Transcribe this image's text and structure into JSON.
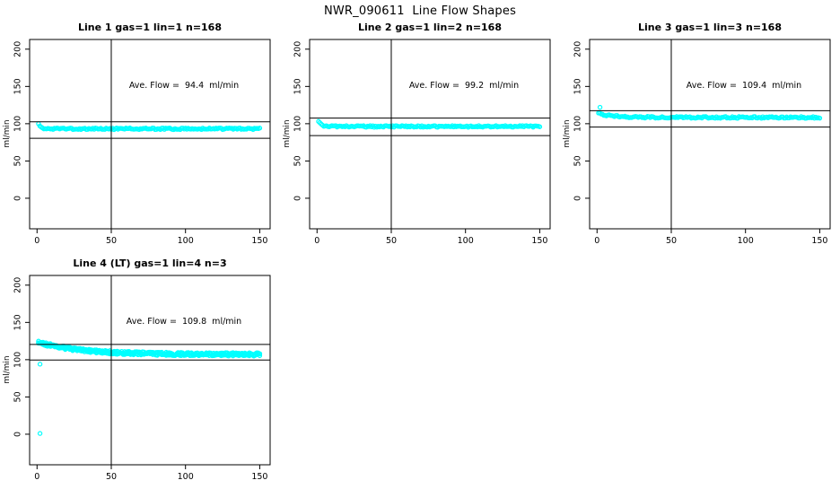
{
  "chart_data": {
    "type": "scatter",
    "title": "NWR_090611  Line Flow Shapes",
    "marker": {
      "shape": "open-circle",
      "color": "#00FFFF",
      "radius": 2.1
    },
    "layout": {
      "rows": 2,
      "cols": 3,
      "grid": false,
      "background": "#ffffff",
      "box_color": "#000000"
    },
    "panels": [
      {
        "id": "line-1",
        "title": "Line 1 gas=1 lin=1 n=168",
        "annotation": "Ave. Flow =  94.4  ml/min",
        "ave_flow": 94.4,
        "n": 168,
        "ylabel": "ml/min",
        "x_ticks": [
          0,
          50,
          100,
          150
        ],
        "y_ticks": [
          0,
          50,
          100,
          150,
          200
        ],
        "xlim": [
          -5,
          157
        ],
        "ylim": [
          -41,
          213
        ],
        "vline_x": 50,
        "ref_lines": [
          102.5,
          80.5
        ],
        "series": {
          "n": 168,
          "x_start": 1,
          "x_end": 150,
          "y_start": 101,
          "y_settle": 93.2,
          "decay_tau": 1.6,
          "noise": 1.1,
          "runs": 1,
          "seed": 11
        },
        "outliers": []
      },
      {
        "id": "line-2",
        "title": "Line 2 gas=1 lin=2 n=168",
        "annotation": "Ave. Flow =  99.2  ml/min",
        "ave_flow": 99.2,
        "n": 168,
        "ylabel": "ml/min",
        "x_ticks": [
          0,
          50,
          100,
          150
        ],
        "y_ticks": [
          0,
          50,
          100,
          150,
          200
        ],
        "xlim": [
          -5,
          157
        ],
        "ylim": [
          -41,
          213
        ],
        "vline_x": 50,
        "ref_lines": [
          107.5,
          84
        ],
        "series": {
          "n": 168,
          "x_start": 1,
          "x_end": 150,
          "y_start": 103.5,
          "y_settle": 96.3,
          "decay_tau": 2.0,
          "noise": 1.1,
          "runs": 1,
          "seed": 22
        },
        "outliers": []
      },
      {
        "id": "line-3",
        "title": "Line 3 gas=1 lin=3 n=168",
        "annotation": "Ave. Flow =  109.4  ml/min",
        "ave_flow": 109.4,
        "n": 168,
        "ylabel": "ml/min",
        "x_ticks": [
          0,
          50,
          100,
          150
        ],
        "y_ticks": [
          0,
          50,
          100,
          150,
          200
        ],
        "xlim": [
          -5,
          157
        ],
        "ylim": [
          -41,
          213
        ],
        "vline_x": 50,
        "ref_lines": [
          117.5,
          95.5
        ],
        "series": {
          "n": 168,
          "x_start": 1,
          "x_end": 150,
          "y_start": 114,
          "y_settle": 108.4,
          "decay_tau": 10,
          "noise": 1.2,
          "runs": 1,
          "seed": 33
        },
        "outliers": [
          [
            2,
            122
          ]
        ]
      },
      {
        "id": "line-4",
        "title": "Line 4 (LT) gas=1 lin=4 n=3",
        "annotation": "Ave. Flow =  109.8  ml/min",
        "ave_flow": 109.8,
        "n": 3,
        "ylabel": "ml/min",
        "x_ticks": [
          0,
          50,
          100,
          150
        ],
        "y_ticks": [
          0,
          50,
          100,
          150,
          200
        ],
        "xlim": [
          -5,
          157
        ],
        "ylim": [
          -41,
          213
        ],
        "vline_x": 50,
        "ref_lines": [
          120.5,
          99.5
        ],
        "series": {
          "n": 150,
          "x_start": 1,
          "x_end": 150,
          "y_start": 123.5,
          "y_settle": 107,
          "decay_tau": 28,
          "noise": 2.2,
          "runs": 3,
          "seed": 44
        },
        "outliers": [
          [
            2,
            94
          ],
          [
            2,
            1
          ]
        ]
      }
    ]
  }
}
